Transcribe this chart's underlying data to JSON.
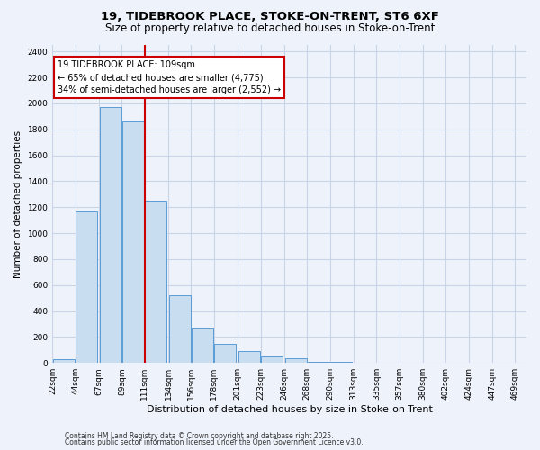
{
  "title1": "19, TIDEBROOK PLACE, STOKE-ON-TRENT, ST6 6XF",
  "title2": "Size of property relative to detached houses in Stoke-on-Trent",
  "xlabel": "Distribution of detached houses by size in Stoke-on-Trent",
  "ylabel": "Number of detached properties",
  "bins_left": [
    22,
    44,
    67,
    89,
    111,
    134,
    156,
    178,
    201,
    223,
    246,
    268,
    290,
    313,
    335,
    357,
    380,
    402,
    424,
    447
  ],
  "bin_width": 22,
  "counts": [
    30,
    1170,
    1970,
    1860,
    1250,
    520,
    275,
    150,
    90,
    50,
    37,
    10,
    5,
    0,
    0,
    0,
    0,
    0,
    0,
    0
  ],
  "bar_color": "#c8ddf0",
  "bar_edge_color": "#5b9bd5",
  "vline_x": 111,
  "vline_color": "#cc0000",
  "annotation_title": "19 TIDEBROOK PLACE: 109sqm",
  "annotation_line1": "← 65% of detached houses are smaller (4,775)",
  "annotation_line2": "34% of semi-detached houses are larger (2,552) →",
  "annotation_box_color": "#ffffff",
  "annotation_box_edge": "#cc0000",
  "ylim": [
    0,
    2450
  ],
  "xlim": [
    22,
    480
  ],
  "tick_labels": [
    "22sqm",
    "44sqm",
    "67sqm",
    "89sqm",
    "111sqm",
    "134sqm",
    "156sqm",
    "178sqm",
    "201sqm",
    "223sqm",
    "246sqm",
    "268sqm",
    "290sqm",
    "313sqm",
    "335sqm",
    "357sqm",
    "380sqm",
    "402sqm",
    "424sqm",
    "447sqm",
    "469sqm"
  ],
  "tick_positions": [
    22,
    44,
    67,
    89,
    111,
    134,
    156,
    178,
    201,
    223,
    246,
    268,
    290,
    313,
    335,
    357,
    380,
    402,
    424,
    447,
    469
  ],
  "yticks": [
    0,
    200,
    400,
    600,
    800,
    1000,
    1200,
    1400,
    1600,
    1800,
    2000,
    2200,
    2400
  ],
  "footer1": "Contains HM Land Registry data © Crown copyright and database right 2025.",
  "footer2": "Contains public sector information licensed under the Open Government Licence v3.0.",
  "bg_color": "#eef2fb",
  "grid_color": "#c8d4e8",
  "title1_fontsize": 9.5,
  "title2_fontsize": 8.5,
  "xlabel_fontsize": 8.0,
  "ylabel_fontsize": 7.5,
  "tick_fontsize": 6.5,
  "annot_fontsize": 7.0,
  "footer_fontsize": 5.5
}
